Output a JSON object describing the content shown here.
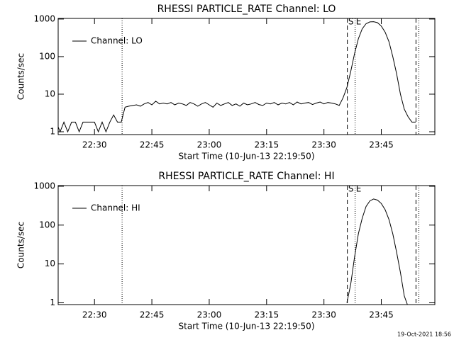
{
  "chart_data": [
    {
      "type": "line",
      "title": "RHESSI PARTICLE_RATE Channel: LO",
      "xlabel": "Start Time (10-Jun-13 22:19:50)",
      "ylabel": "Counts/sec",
      "x": [
        "22:20",
        "22:21",
        "22:22",
        "22:23",
        "22:24",
        "22:25",
        "22:26",
        "22:27",
        "22:28",
        "22:29",
        "22:30",
        "22:31",
        "22:32",
        "22:33",
        "22:34",
        "22:35",
        "22:36",
        "22:37",
        "22:38",
        "22:39",
        "22:40",
        "22:41",
        "22:42",
        "22:43",
        "22:44",
        "22:45",
        "22:46",
        "22:47",
        "22:48",
        "22:49",
        "22:50",
        "22:51",
        "22:52",
        "22:53",
        "22:54",
        "22:55",
        "22:56",
        "22:57",
        "22:58",
        "22:59",
        "23:00",
        "23:01",
        "23:02",
        "23:03",
        "23:04",
        "23:05",
        "23:06",
        "23:07",
        "23:08",
        "23:09",
        "23:10",
        "23:11",
        "23:12",
        "23:13",
        "23:14",
        "23:15",
        "23:16",
        "23:17",
        "23:18",
        "23:19",
        "23:20",
        "23:21",
        "23:22",
        "23:23",
        "23:24",
        "23:25",
        "23:26",
        "23:27",
        "23:28",
        "23:29",
        "23:30",
        "23:31",
        "23:32",
        "23:33",
        "23:34",
        "23:35",
        "23:36",
        "23:37",
        "23:38",
        "23:39",
        "23:40",
        "23:41",
        "23:42",
        "23:43",
        "23:44",
        "23:45",
        "23:46",
        "23:47",
        "23:48",
        "23:49",
        "23:50",
        "23:51",
        "23:52",
        "23:53",
        "23:54"
      ],
      "series": [
        {
          "name": "Channel: LO",
          "color": "#000000",
          "values": [
            1.8,
            1,
            1.8,
            1,
            1.8,
            1.8,
            1,
            1.8,
            1.8,
            1.8,
            1.8,
            1,
            1.8,
            1,
            1.8,
            2.8,
            1.8,
            1.8,
            4.5,
            4.8,
            5,
            5.2,
            4.8,
            5.5,
            6,
            5.2,
            6.5,
            5.5,
            5.8,
            5.5,
            6,
            5.2,
            5.8,
            5.5,
            5,
            6,
            5.5,
            4.8,
            5.5,
            6,
            5.2,
            4.5,
            5.8,
            5,
            5.5,
            6,
            5,
            5.5,
            4.8,
            5.8,
            5.2,
            5.5,
            6,
            5.3,
            5,
            5.8,
            5.5,
            6,
            5.2,
            5.8,
            5.5,
            6,
            5.2,
            6.2,
            5.5,
            5.8,
            6,
            5.3,
            5.8,
            6.2,
            5.5,
            6,
            5.8,
            5.5,
            5,
            8,
            15,
            40,
            120,
            300,
            550,
            750,
            840,
            850,
            800,
            650,
            450,
            250,
            100,
            35,
            10,
            4,
            2.5,
            1.8,
            1.8
          ]
        }
      ],
      "xlim": [
        "22:20:30",
        "23:59:00"
      ],
      "xticks": [
        "22:30",
        "22:45",
        "23:00",
        "23:15",
        "23:30",
        "23:45"
      ],
      "ylim": [
        0.84,
        1040
      ],
      "yticks": [
        1,
        10,
        100,
        1000
      ],
      "log_y": true,
      "legend": "upper left",
      "vlines": [
        {
          "x": "22:37:13",
          "style": "dotted"
        },
        {
          "x": "23:54:04",
          "style": "dashed"
        },
        {
          "x": "23:54:49",
          "style": "dotted"
        }
      ],
      "markers": [
        {
          "label": "S",
          "x": "23:36:07",
          "style": "dashed"
        },
        {
          "label": "E",
          "x": "23:38:09",
          "style": "dotted"
        }
      ]
    },
    {
      "type": "line",
      "title": "RHESSI PARTICLE_RATE Channel: HI",
      "xlabel": "Start Time (10-Jun-13 22:19:50)",
      "ylabel": "Counts/sec",
      "x": [
        "23:36",
        "23:37",
        "23:38",
        "23:39",
        "23:40",
        "23:41",
        "23:42",
        "23:43",
        "23:44",
        "23:45",
        "23:46",
        "23:47",
        "23:48",
        "23:49",
        "23:50",
        "23:51",
        "23:52"
      ],
      "series": [
        {
          "name": "Channel: HI",
          "color": "#000000",
          "values": [
            1,
            3,
            15,
            60,
            150,
            300,
            420,
            470,
            440,
            360,
            250,
            140,
            60,
            20,
            6,
            1.5,
            0.8
          ]
        }
      ],
      "xlim": [
        "22:20:30",
        "23:59:00"
      ],
      "xticks": [
        "22:30",
        "22:45",
        "23:00",
        "23:15",
        "23:30",
        "23:45"
      ],
      "ylim": [
        0.9,
        1040
      ],
      "yticks": [
        1,
        10,
        100,
        1000
      ],
      "log_y": true,
      "legend": "upper left",
      "vlines": [
        {
          "x": "22:37:13",
          "style": "dotted"
        },
        {
          "x": "23:54:04",
          "style": "dashed"
        },
        {
          "x": "23:54:49",
          "style": "dotted"
        }
      ],
      "markers": [
        {
          "label": "S",
          "x": "23:36:07",
          "style": "dashed"
        },
        {
          "label": "E",
          "x": "23:38:09",
          "style": "dotted"
        }
      ]
    }
  ],
  "timestamp": "19-Oct-2021 18:56"
}
